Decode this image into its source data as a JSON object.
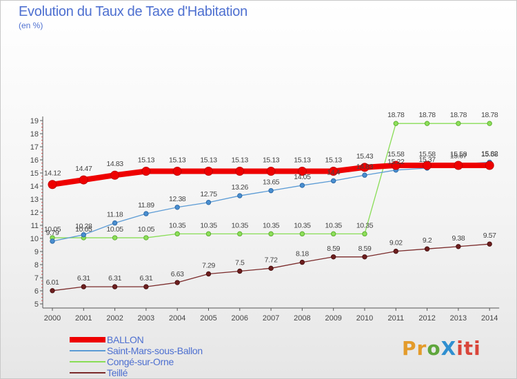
{
  "title": "Evolution du Taux de Taxe d'Habitation",
  "unit_label": "(en %)",
  "logo": "ProXiti",
  "chart_data": {
    "type": "line",
    "title": "Evolution du Taux de Taxe d'Habitation",
    "ylabel": "(en %)",
    "xlabel": "",
    "x": [
      "2000",
      "2001",
      "2002",
      "2003",
      "2004",
      "2005",
      "2006",
      "2007",
      "2008",
      "2009",
      "2010",
      "2011",
      "2012",
      "2013",
      "2014"
    ],
    "ylim": [
      5,
      19
    ],
    "yticks": [
      5,
      6,
      7,
      8,
      9,
      10,
      11,
      12,
      13,
      14,
      15,
      16,
      17,
      18,
      19
    ],
    "grid": false,
    "legend_position": "bottom-left",
    "series": [
      {
        "name": "BALLON",
        "color": "#ee0000",
        "values": [
          14.12,
          14.47,
          14.83,
          15.13,
          15.13,
          15.13,
          15.13,
          15.13,
          15.13,
          15.13,
          15.43,
          15.58,
          15.58,
          15.58,
          15.58
        ],
        "labels": [
          "14.12",
          "14.47",
          "14.83",
          "15.13",
          "15.13",
          "15.13",
          "15.13",
          "15.13",
          "15.13",
          "15.13",
          "15.43",
          "15.58",
          "15.58",
          "15.58",
          "15.58"
        ]
      },
      {
        "name": "Saint-Mars-sous-Ballon",
        "color": "#5b9bd5",
        "values": [
          9.79,
          10.28,
          11.18,
          11.89,
          12.38,
          12.75,
          13.26,
          13.65,
          14.05,
          14.4,
          14.83,
          15.22,
          15.37,
          15.67,
          15.82
        ],
        "labels": [
          "9.79",
          "10.28",
          "11.18",
          "11.89",
          "12.38",
          "12.75",
          "13.26",
          "13.65",
          "14.05",
          "14.4",
          "14.83",
          "15.22",
          "15.37",
          "15.67",
          "15.82"
        ]
      },
      {
        "name": "Congé-sur-Orne",
        "color": "#88dd55",
        "values": [
          10.05,
          10.05,
          10.05,
          10.05,
          10.35,
          10.35,
          10.35,
          10.35,
          10.35,
          10.35,
          10.35,
          18.78,
          18.78,
          18.78,
          18.78
        ],
        "labels": [
          "10.05",
          "10.05",
          "10.05",
          "10.05",
          "10.35",
          "10.35",
          "10.35",
          "10.35",
          "10.35",
          "10.35",
          "10.35",
          "18.78",
          "18.78",
          "18.78",
          "18.78"
        ]
      },
      {
        "name": "Teillé",
        "color": "#7a2a2a",
        "values": [
          6.01,
          6.31,
          6.31,
          6.31,
          6.63,
          7.29,
          7.5,
          7.72,
          8.18,
          8.59,
          8.59,
          9.02,
          9.2,
          9.38,
          9.57
        ],
        "labels": [
          "6.01",
          "6.31",
          "6.31",
          "6.31",
          "6.63",
          "7.29",
          "7.5",
          "7.72",
          "8.18",
          "8.59",
          "8.59",
          "9.02",
          "9.2",
          "9.38",
          "9.57"
        ]
      }
    ]
  }
}
